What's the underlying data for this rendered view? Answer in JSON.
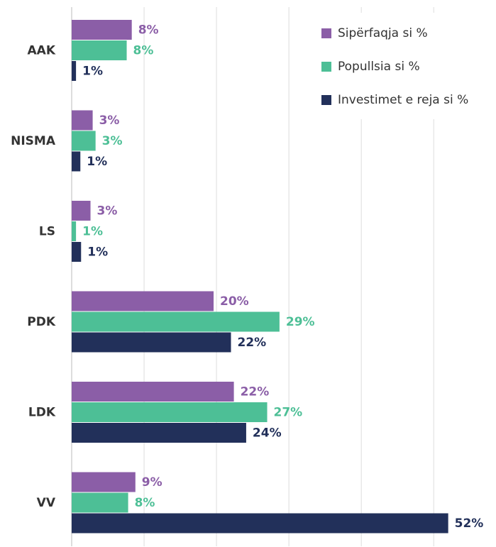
{
  "chart_data": {
    "type": "barh",
    "categories": [
      "AAK",
      "NISMA",
      "LS",
      "PDK",
      "LDK",
      "VV"
    ],
    "series": [
      {
        "name": "Sipërfaqja si %",
        "color": "#8b5ea7",
        "values": [
          8.3,
          2.9,
          2.6,
          19.6,
          22.4,
          8.8
        ],
        "value_labels": [
          "8%",
          "3%",
          "3%",
          "20%",
          "22%",
          "9%"
        ]
      },
      {
        "name": "Popullsia si %",
        "color": "#4dbf96",
        "values": [
          7.6,
          3.3,
          0.6,
          28.7,
          27.0,
          7.8
        ],
        "value_labels": [
          "8%",
          "3%",
          "1%",
          "29%",
          "27%",
          "8%"
        ]
      },
      {
        "name": "Investimet e reja si %",
        "color": "#22305a",
        "values": [
          0.6,
          1.2,
          1.3,
          22.0,
          24.1,
          52.0
        ],
        "value_labels": [
          "1%",
          "1%",
          "1%",
          "22%",
          "24%",
          "52%"
        ]
      }
    ],
    "xlim": [
      0,
      58.6
    ],
    "xticks": [
      0,
      10,
      20,
      30,
      40,
      50
    ],
    "grid": true,
    "legend": "upper right"
  }
}
